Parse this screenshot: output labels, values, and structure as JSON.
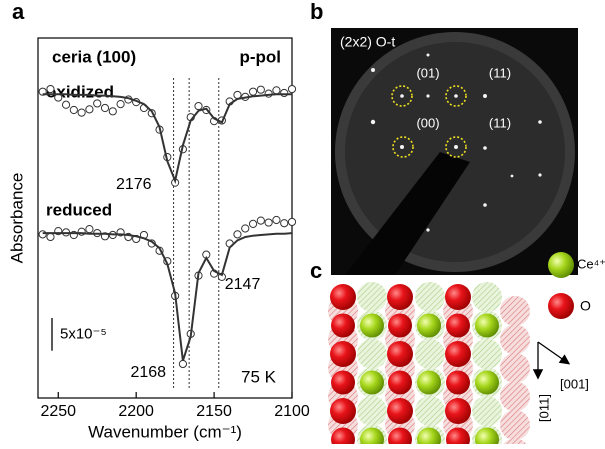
{
  "panel_labels": [
    "a",
    "b",
    "c"
  ],
  "chart_data": {
    "type": "line",
    "annotations": {
      "sample": "ceria (100)",
      "polarization": "p-pol",
      "temperature": "75 K"
    },
    "xlabel": "Wavenumber (cm⁻¹)",
    "ylabel": "Absorbance",
    "xlim": [
      2263,
      2100
    ],
    "xticks": [
      2250,
      2200,
      2150,
      2100
    ],
    "ylim": [
      0,
      55
    ],
    "x": [
      2260,
      2255,
      2250,
      2245,
      2240,
      2235,
      2230,
      2225,
      2220,
      2215,
      2210,
      2205,
      2200,
      2195,
      2190,
      2185,
      2180,
      2175,
      2170,
      2165,
      2160,
      2155,
      2150,
      2145,
      2140,
      2135,
      2130,
      2125,
      2120,
      2115,
      2110,
      2105,
      2100
    ],
    "series": [
      {
        "name": "oxidized",
        "color": "#333333",
        "values": [
          46.8,
          47.2,
          45.9,
          44.8,
          44.0,
          43.6,
          44.1,
          45.0,
          44.3,
          43.8,
          44.9,
          45.6,
          45.2,
          44.3,
          43.5,
          41.0,
          36.8,
          32.9,
          38.0,
          42.9,
          44.6,
          44.0,
          42.3,
          42.4,
          45.3,
          46.3,
          46.0,
          46.8,
          47.1,
          46.5,
          47.0,
          46.6,
          47.2
        ],
        "fit": [
          46.4,
          46.4,
          46.4,
          46.4,
          46.3,
          46.3,
          46.3,
          46.2,
          46.2,
          46.1,
          46.0,
          45.8,
          45.4,
          44.9,
          43.8,
          41.4,
          36.2,
          33.2,
          38.6,
          42.4,
          43.9,
          44.2,
          42.7,
          42.1,
          44.9,
          45.7,
          45.9,
          46.1,
          46.2,
          46.3,
          46.4,
          46.4,
          46.4
        ]
      },
      {
        "name": "reduced",
        "color": "#333333",
        "values": [
          25.0,
          24.6,
          25.5,
          25.3,
          24.9,
          25.4,
          25.8,
          25.2,
          24.7,
          24.9,
          25.3,
          24.6,
          24.3,
          24.9,
          23.6,
          22.5,
          20.9,
          15.6,
          5.2,
          9.8,
          18.7,
          21.9,
          19.0,
          18.5,
          23.6,
          25.0,
          25.9,
          26.6,
          27.1,
          26.8,
          27.2,
          26.7,
          26.9
        ],
        "fit": [
          25.2,
          25.2,
          25.2,
          25.2,
          25.2,
          25.2,
          25.1,
          25.1,
          25.1,
          25.0,
          25.0,
          24.9,
          24.7,
          24.4,
          23.9,
          22.9,
          20.5,
          16.0,
          5.7,
          9.4,
          19.1,
          21.4,
          19.4,
          18.8,
          23.0,
          24.1,
          24.6,
          24.8,
          24.9,
          25.0,
          25.1,
          25.1,
          25.2
        ]
      }
    ],
    "peak_labels": [
      {
        "series": 0,
        "x": 2176
      },
      {
        "series": 1,
        "x": 2147
      },
      {
        "series": 1,
        "x": 2168
      }
    ],
    "reference_lines": [
      2176,
      2166,
      2147
    ],
    "scale_bar": {
      "value": 5,
      "label": "5x10⁻⁵"
    }
  },
  "leed": {
    "label": "(2x2) O-t",
    "spots": [
      "(01)",
      "(11)",
      "(00)",
      "(11)"
    ]
  },
  "structure": {
    "legend": [
      "Ce⁴⁺",
      "O"
    ],
    "directions": [
      "[011]",
      "[001]"
    ]
  }
}
